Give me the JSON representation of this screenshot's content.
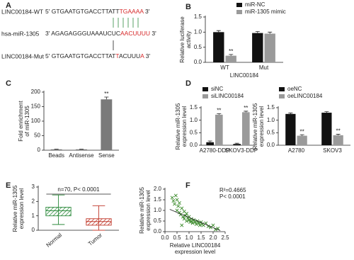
{
  "sequence_panel": {
    "panel_label": "A",
    "rows": [
      {
        "name": "LINC00184-WT",
        "segments": [
          {
            "text": "5' GTGAATGTGACCTTATT",
            "color": "#222222"
          },
          {
            "text": "TGAAAA",
            "color": "#d62728"
          },
          {
            "text": " 3'",
            "color": "#222222"
          }
        ]
      },
      {
        "name": "hsa-miR-1305",
        "segments": [
          {
            "text": "3' AGAGAGGGUAAAUCUC",
            "color": "#222222"
          },
          {
            "text": "AACUUUU",
            "color": "#d62728"
          },
          {
            "text": " 3'",
            "color": "#222222"
          }
        ]
      },
      {
        "name": "LINC00184-Mut",
        "segments": [
          {
            "text": "5' GTGAATGTGACCTTAT",
            "color": "#222222"
          },
          {
            "text": "T",
            "color": "#d62728"
          },
          {
            "text": "ACUUU",
            "color": "#222222"
          },
          {
            "text": "A",
            "color": "#d62728"
          },
          {
            "text": " 3'",
            "color": "#222222"
          }
        ]
      }
    ]
  },
  "chart_data": [
    {
      "type": "bar",
      "panel_label": "B",
      "categories": [
        "WT",
        "Mut"
      ],
      "series": [
        {
          "name": "miR-NC",
          "color": "#111111",
          "values": [
            1.0,
            0.97
          ],
          "errors": [
            0.05,
            0.05
          ],
          "significance": [
            null,
            null
          ]
        },
        {
          "name": "miR-1305 mimic",
          "color": "#9a9a9a",
          "values": [
            0.22,
            0.95
          ],
          "errors": [
            0.04,
            0.05
          ],
          "significance": [
            "**",
            null
          ]
        }
      ],
      "ylabel": [
        "Relative luciferase",
        "activity"
      ],
      "xlabel": "LINC00184",
      "ylim": [
        0,
        1.5
      ],
      "yticks": [
        {
          "value": 0,
          "label": "0.0"
        },
        {
          "value": 0.5,
          "label": "0.5"
        },
        {
          "value": 1,
          "label": "1.0"
        },
        {
          "value": 1.5,
          "label": "1.5"
        }
      ]
    },
    {
      "type": "bar",
      "panel_label": "C",
      "categories": [
        "Beads",
        "Antisense",
        "Sense"
      ],
      "series": [
        {
          "color": "#7a7a7a",
          "values": [
            3,
            3,
            175
          ],
          "errors": [
            1,
            1,
            8
          ],
          "significance": [
            null,
            null,
            "**"
          ]
        }
      ],
      "ylabel": [
        "Fold enrichment",
        "of miR-1305"
      ],
      "ylim": [
        0,
        200
      ],
      "yticks": [
        0,
        50,
        100,
        150,
        200
      ]
    },
    {
      "type": "bar",
      "panel_label": "D",
      "categories": [
        "A2780-DDP",
        "SKOV3-DDP"
      ],
      "series": [
        {
          "name": "siNC",
          "color": "#111111",
          "values": [
            0.12,
            0.05
          ],
          "errors": [
            0.05,
            0.03
          ],
          "significance": [
            null,
            null
          ]
        },
        {
          "name": "siLINC00184",
          "color": "#9a9a9a",
          "values": [
            1.22,
            1.32
          ],
          "errors": [
            0.04,
            0.04
          ],
          "significance": [
            "**",
            "**"
          ]
        }
      ],
      "ylabel": [
        "Relative miR-1305",
        "expression level"
      ],
      "ylim": [
        0,
        1.5
      ],
      "yticks": [
        {
          "value": 0,
          "label": "0.0"
        },
        {
          "value": 0.5,
          "label": "0.5"
        },
        {
          "value": 1,
          "label": "1.0"
        },
        {
          "value": 1.5,
          "label": "1.5"
        }
      ]
    },
    {
      "type": "bar",
      "categories": [
        "A2780",
        "SKOV3"
      ],
      "series": [
        {
          "name": "oeNC",
          "color": "#111111",
          "values": [
            1.25,
            1.3
          ],
          "errors": [
            0.04,
            0.04
          ],
          "significance": [
            null,
            null
          ]
        },
        {
          "name": "oeLINC00184",
          "color": "#9a9a9a",
          "values": [
            0.38,
            0.4
          ],
          "errors": [
            0.04,
            0.04
          ],
          "significance": [
            "**",
            "**"
          ]
        }
      ],
      "ylabel": [
        "Relative miR-1305",
        "expression level"
      ],
      "ylim": [
        0,
        1.5
      ],
      "yticks": [
        {
          "value": 0,
          "label": "0.0"
        },
        {
          "value": 0.5,
          "label": "0.5"
        },
        {
          "value": 1,
          "label": "1.0"
        },
        {
          "value": 1.5,
          "label": "1.5"
        }
      ]
    },
    {
      "type": "box",
      "panel_label": "E",
      "categories": [
        "Normal",
        "Tumor"
      ],
      "boxes": [
        {
          "min": 0.4,
          "q1": 1.0,
          "median": 1.35,
          "q3": 1.6,
          "max": 2.45,
          "color": "#2e8b3e"
        },
        {
          "min": 0.0,
          "q1": 0.35,
          "median": 0.6,
          "q3": 0.8,
          "max": 1.7,
          "color": "#c0392b"
        }
      ],
      "annotation": "n=70, P< 0.0001",
      "ylabel": [
        "Relative miR-1305",
        "expression level"
      ],
      "ylim": [
        0,
        3
      ],
      "yticks": [
        0,
        1,
        2,
        3
      ]
    },
    {
      "type": "scatter",
      "panel_label": "F",
      "color": "#3a8a2a",
      "x": [
        0.3,
        0.35,
        0.4,
        0.45,
        0.5,
        0.5,
        0.55,
        0.6,
        0.6,
        0.65,
        0.7,
        0.75,
        0.8,
        0.8,
        0.85,
        0.9,
        0.9,
        0.95,
        1.0,
        1.0,
        1.05,
        1.1,
        1.1,
        1.15,
        1.2,
        1.25,
        1.3,
        1.35,
        1.4,
        1.45,
        1.5,
        1.55,
        1.6,
        1.7,
        1.8,
        1.9,
        2.0,
        2.1,
        2.2,
        0.7
      ],
      "y": [
        1.6,
        1.45,
        1.3,
        1.7,
        1.0,
        1.5,
        1.2,
        0.9,
        1.35,
        0.8,
        1.1,
        0.7,
        0.95,
        0.6,
        0.75,
        0.5,
        0.85,
        0.65,
        0.55,
        0.7,
        0.45,
        0.6,
        0.5,
        0.4,
        0.55,
        0.45,
        0.35,
        0.5,
        0.4,
        0.3,
        0.45,
        0.35,
        0.3,
        0.4,
        0.25,
        0.2,
        0.3,
        0.1,
        0.15,
        0.3
      ],
      "fit": {
        "x": [
          0.2,
          2.3
        ],
        "y": [
          1.05,
          0.05
        ]
      },
      "annotations": [
        "R²=0.4665",
        "P< 0.0001"
      ],
      "xlabel": [
        "Relative LINC00184",
        "expression level"
      ],
      "ylabel": [
        "Relative miR-1305",
        "expression level"
      ],
      "xlim": [
        0,
        2.5
      ],
      "xticks": [
        {
          "value": 0,
          "label": "0.0"
        },
        {
          "value": 0.5,
          "label": "0.5"
        },
        {
          "value": 1,
          "label": "1.0"
        },
        {
          "value": 1.5,
          "label": "1.5"
        },
        {
          "value": 2,
          "label": "2.0"
        },
        {
          "value": 2.5,
          "label": "2.5"
        }
      ],
      "ylim": [
        0,
        2
      ],
      "yticks": [
        {
          "value": 0,
          "label": "0.0"
        },
        {
          "value": 0.5,
          "label": "0.5"
        },
        {
          "value": 1,
          "label": "1.0"
        },
        {
          "value": 1.5,
          "label": "1.5"
        },
        {
          "value": 2,
          "label": "2.0"
        }
      ]
    }
  ]
}
